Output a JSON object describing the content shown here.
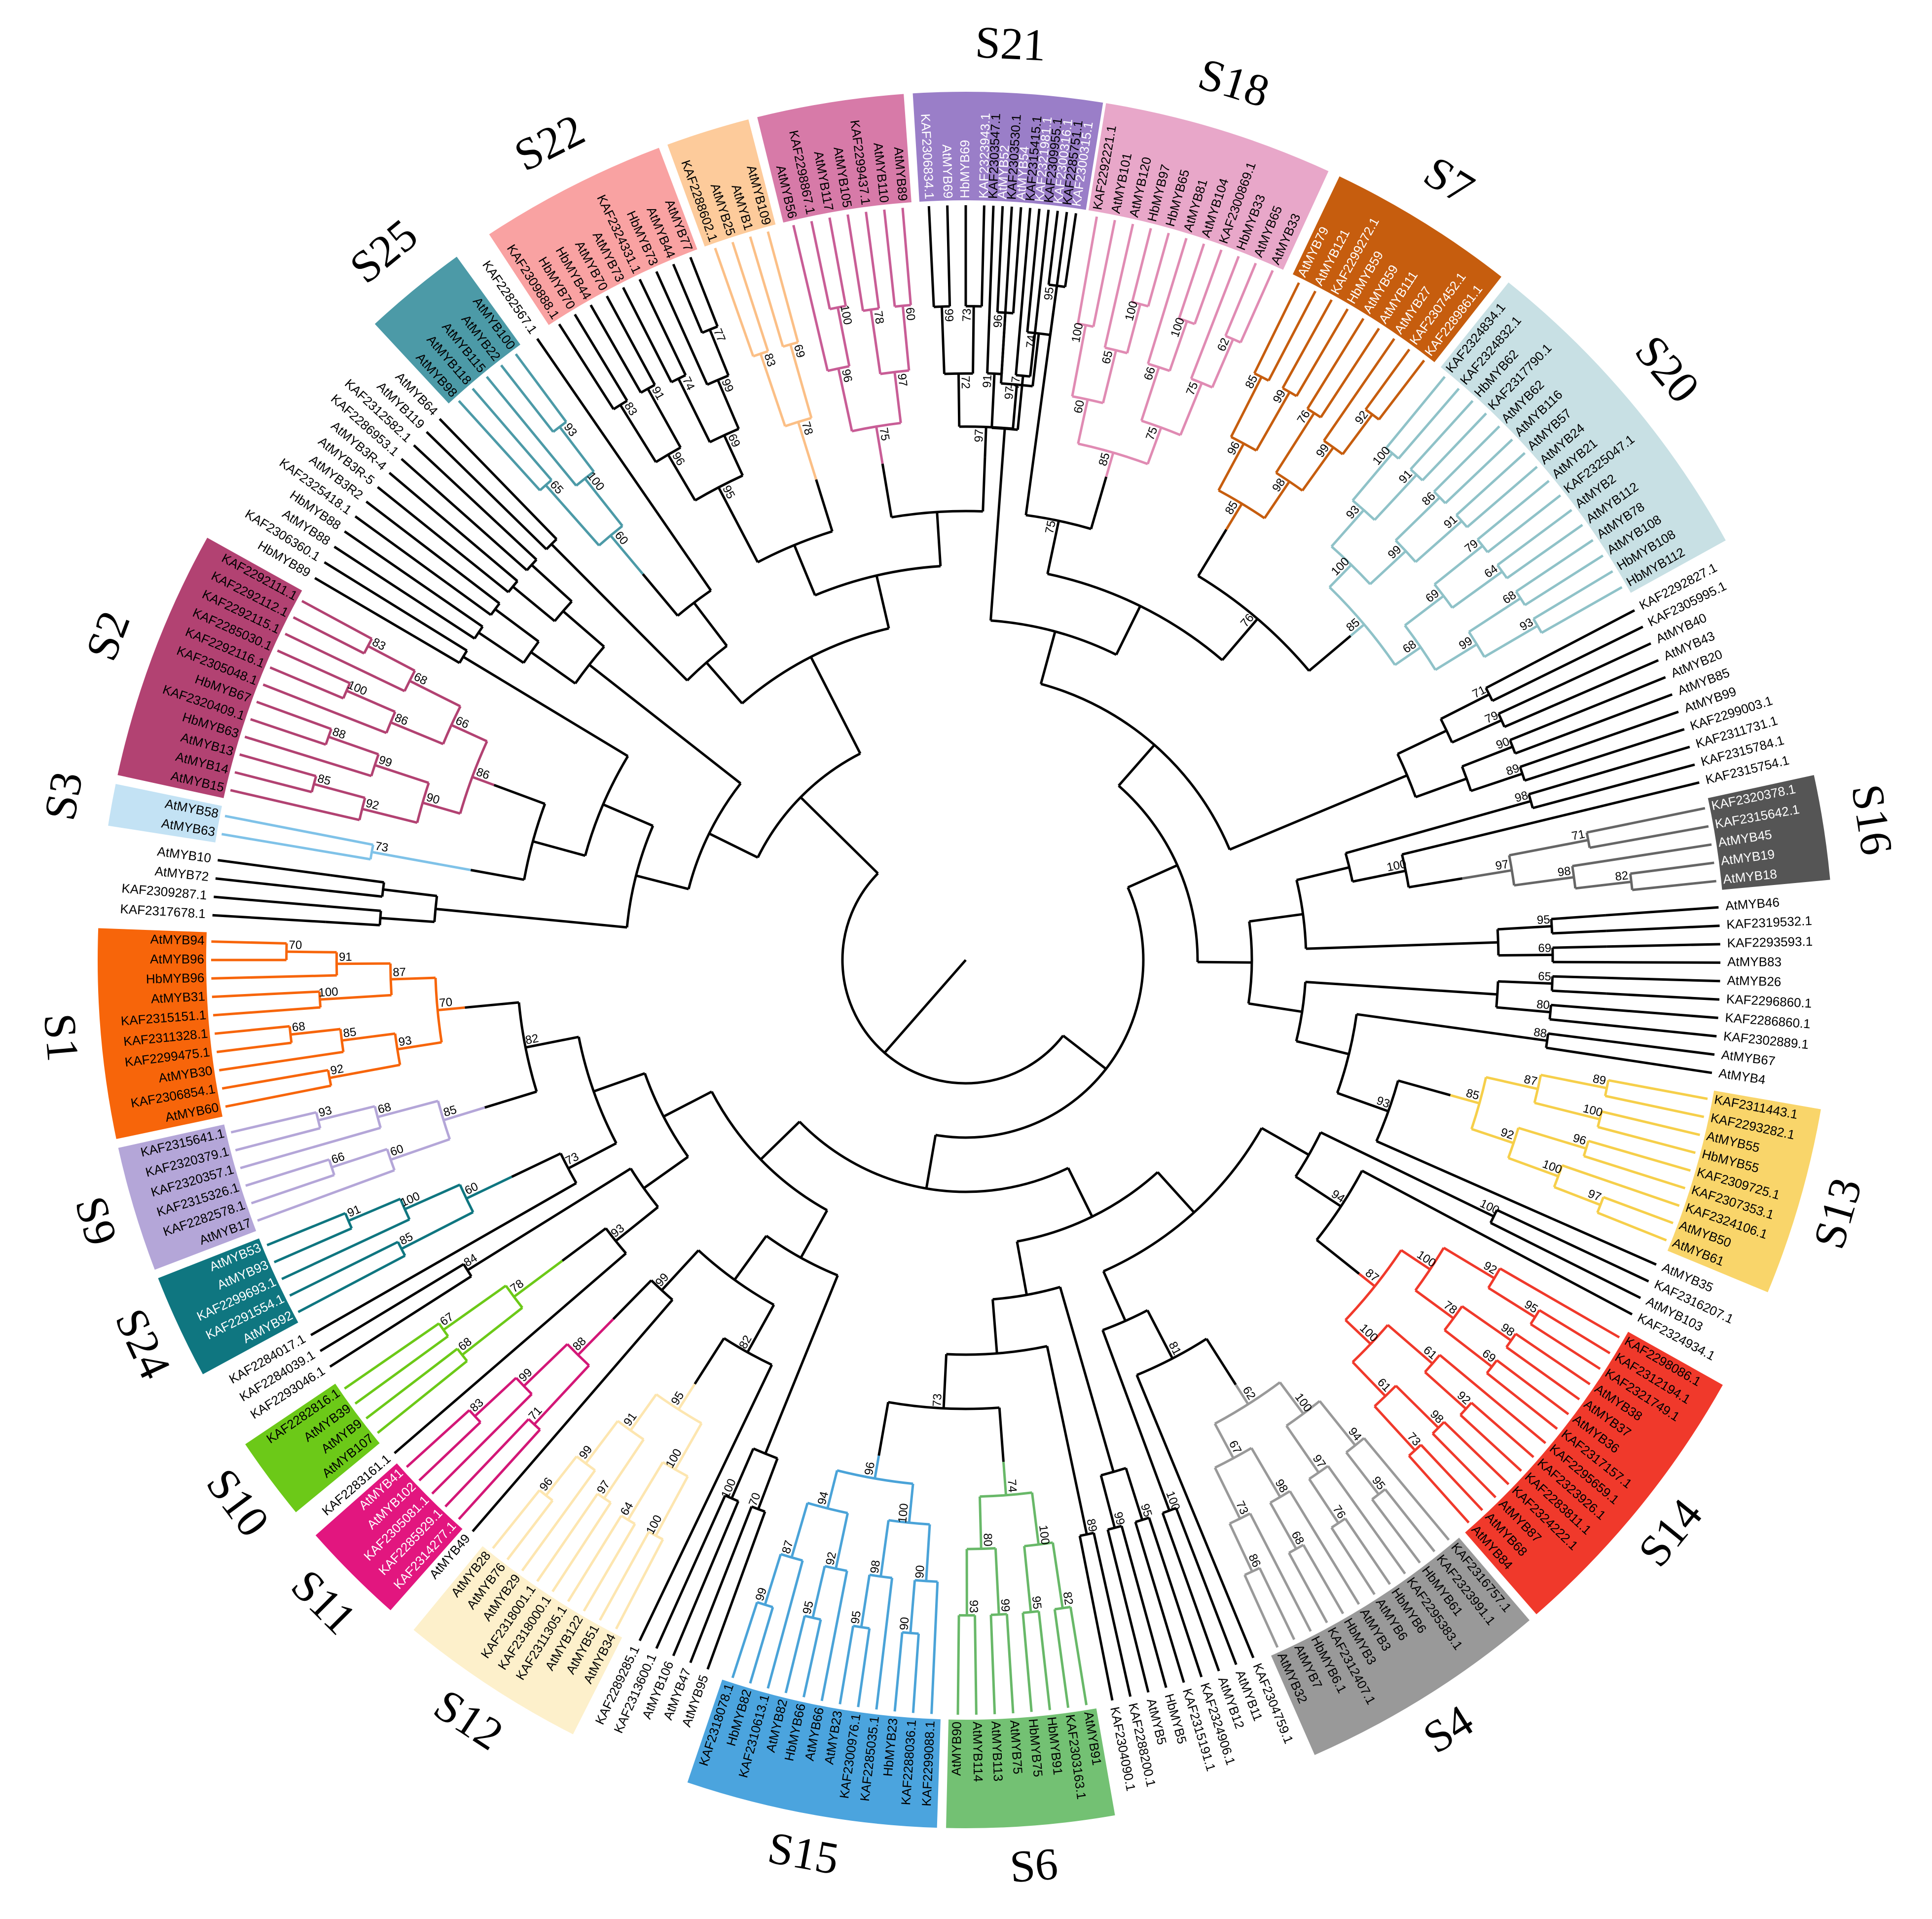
{
  "colors": {
    "S21": "#9a7ec8",
    "S18": "#e8a7c9",
    "S7": "#c65d0e",
    "S20": "#c8e0e4",
    "S16": "#555555",
    "S13": "#f9d56a",
    "S14": "#f0392b",
    "S4": "#999999",
    "S6": "#73c173",
    "S15": "#4ba4de",
    "S12": "#fdf0cb",
    "S11": "#e2167f",
    "S10": "#6cc918",
    "S24": "#0f7680",
    "S9": "#b4a6d8",
    "S1": "#f7650a",
    "S3": "#c3e2f4",
    "S2": "#b24272",
    "S25": "#4c9aa7",
    "S22": "#f9a2a2",
    "S_peach": "#fdcb9b",
    "S_mauve": "#d77aa8"
  },
  "branch_colors": {
    "S18": "#e08bb3",
    "S7": "#c65d0e",
    "S20": "#8fc2c8",
    "S16": "#666666",
    "S13": "#f6cf4a",
    "S14": "#f0392b",
    "S4": "#999999",
    "S6": "#68b868",
    "S15": "#4aa3d8",
    "S12": "#fde6b0",
    "S11": "#d31777",
    "S10": "#6cc918",
    "S24": "#0f7680",
    "S9": "#b4a6d8",
    "S1": "#f7650a",
    "S3": "#7fc2e8",
    "S2": "#b24272",
    "S25": "#4c9aa7",
    "S_peach": "#fbbf86",
    "S_mauve": "#c85d96",
    "S_red": "#f01010",
    "S_pink": "#f7b3b3"
  },
  "subfamilies": [
    {
      "label": "S21",
      "from": "KAF2306834.1",
      "to": "KAF2300315.1"
    },
    {
      "label": "S18",
      "from": "KAF2292221.1",
      "to": "AtMYB33"
    },
    {
      "label": "S7",
      "from": "AtMYB79",
      "to": "KAF2289861.1"
    },
    {
      "label": "S20",
      "from": "KAF2324834.1",
      "to": "HbMYB112"
    },
    {
      "label": "S16",
      "from": "KAF2320378.1",
      "to": "AtMYB18"
    },
    {
      "label": "S13",
      "from": "KAF2311443.1",
      "to": "AtMYB61"
    },
    {
      "label": "S14",
      "from": "KAF2298086.1",
      "to": "AtMYB84"
    },
    {
      "label": "S4",
      "from": "KAF2316757.1",
      "to": "AtMYB32"
    },
    {
      "label": "S6",
      "from": "AtMYB91",
      "to": "AtMYB90"
    },
    {
      "label": "S15",
      "from": "KAF2299088.1",
      "to": "KAF2318078.1"
    },
    {
      "label": "S12",
      "from": "AtMYB34",
      "to": "AtMYB28"
    },
    {
      "label": "S11",
      "from": "KAF2314277.1",
      "to": "AtMYB41"
    },
    {
      "label": "S10",
      "from": "AtMYB107",
      "to": "KAF2282816.1"
    },
    {
      "label": "S24",
      "from": "AtMYB92",
      "to": "AtMYB53"
    },
    {
      "label": "S9",
      "from": "AtMYB17",
      "to": "KAF2315641.1"
    },
    {
      "label": "S1",
      "from": "AtMYB60",
      "to": "AtMYB94"
    },
    {
      "label": "S3",
      "from": "AtMYB63",
      "to": "AtMYB58"
    },
    {
      "label": "S2",
      "from": "AtMYB15",
      "to": "KAF2292111.1"
    },
    {
      "label": "S25",
      "from": "AtMYB98",
      "to": "AtMYB100"
    },
    {
      "label": "S22",
      "from": "KAF2309888.1",
      "to": "AtMYB77"
    }
  ],
  "unlabeled_bands": [
    {
      "color": "S_peach",
      "from": "KAF2288602.1",
      "to": "AtMYB109"
    },
    {
      "color": "S_mauve",
      "from": "AtMYB56",
      "to": "AtMYB89"
    }
  ],
  "leaves": [
    {
      "label": "KAF2303547.1",
      "a": -87.9
    },
    {
      "label": "KAF2303530.1",
      "a": -86.5
    },
    {
      "label": "KAF2315415.1",
      "a": -85.1
    },
    {
      "label": "KAF2309955.1",
      "a": -83.7
    },
    {
      "label": "KAF2285751.1",
      "a": -82.3
    },
    {
      "label": "KAF2292221.1",
      "a": -80.0
    },
    {
      "label": "AtMYB101",
      "a": -78.6
    },
    {
      "label": "AtMYB120",
      "a": -77.2
    },
    {
      "label": "HbMYB97",
      "a": -75.8
    },
    {
      "label": "HbMYB65",
      "a": -74.4
    },
    {
      "label": "AtMYB81",
      "a": -73.0
    },
    {
      "label": "AtMYB104",
      "a": -71.6
    },
    {
      "label": "KAF2300869.1",
      "a": -70.2
    },
    {
      "label": "HbMYB33",
      "a": -68.8
    },
    {
      "label": "AtMYB65",
      "a": -67.4
    },
    {
      "label": "AtMYB33",
      "a": -66.0
    },
    {
      "label": "AtMYB79",
      "a": -63.8
    },
    {
      "label": "AtMYB121",
      "a": -62.4
    },
    {
      "label": "KAF2299272.1",
      "a": -61.0
    },
    {
      "label": "HbMYB59",
      "a": -59.6
    },
    {
      "label": "AtMYB59",
      "a": -58.2
    },
    {
      "label": "AtMYB111",
      "a": -56.8
    },
    {
      "label": "AtMYB27",
      "a": -55.4
    },
    {
      "label": "KAF2307452.1",
      "a": -54.0
    },
    {
      "label": "KAF2289861.1",
      "a": -52.6
    },
    {
      "label": "KAF2324834.1",
      "a": -50.6
    },
    {
      "label": "KAF2324832.1",
      "a": -49.2
    },
    {
      "label": "HbMYB62",
      "a": -47.8
    },
    {
      "label": "KAF2317790.1",
      "a": -46.4
    },
    {
      "label": "AtMYB62",
      "a": -45.0
    },
    {
      "label": "AtMYB116",
      "a": -43.6
    },
    {
      "label": "AtMYB57",
      "a": -42.2
    },
    {
      "label": "AtMYB24",
      "a": -40.8
    },
    {
      "label": "AtMYB21",
      "a": -39.4
    },
    {
      "label": "KAF2325047.1",
      "a": -38.0
    },
    {
      "label": "AtMYB2",
      "a": -36.6
    },
    {
      "label": "AtMYB112",
      "a": -35.2
    },
    {
      "label": "AtMYB78",
      "a": -33.8
    },
    {
      "label": "AtMYB108",
      "a": -32.4
    },
    {
      "label": "HbMYB108",
      "a": -31.0
    },
    {
      "label": "HbMYB112",
      "a": -29.6
    },
    {
      "label": "KAF2292827.1",
      "a": -27.6
    },
    {
      "label": "KAF2305995.1",
      "a": -26.2
    },
    {
      "label": "AtMYB40",
      "a": -24.8
    },
    {
      "label": "AtMYB43",
      "a": -23.4
    },
    {
      "label": "AtMYB20",
      "a": -22.0
    },
    {
      "label": "AtMYB85",
      "a": -20.6
    },
    {
      "label": "AtMYB99",
      "a": -19.2
    },
    {
      "label": "KAF2299003.1",
      "a": -17.8
    },
    {
      "label": "KAF2311731.1",
      "a": -16.4
    },
    {
      "label": "KAF2315784.1",
      "a": -15.0
    },
    {
      "label": "KAF2315754.1",
      "a": -13.6
    },
    {
      "label": "KAF2320378.1",
      "a": -11.6
    },
    {
      "label": "KAF2315642.1",
      "a": -10.2
    },
    {
      "label": "AtMYB45",
      "a": -8.8
    },
    {
      "label": "AtMYB19",
      "a": -7.4
    },
    {
      "label": "AtMYB18",
      "a": -6.0
    },
    {
      "label": "AtMYB46",
      "a": -4.0
    },
    {
      "label": "KAF2319532.1",
      "a": -2.6
    },
    {
      "label": "KAF2293593.1",
      "a": -1.2
    },
    {
      "label": "AtMYB83",
      "a": 0.2
    },
    {
      "label": "AtMYB26",
      "a": 1.6
    },
    {
      "label": "KAF2296860.1",
      "a": 3.0
    },
    {
      "label": "KAF2286860.1",
      "a": 4.4
    },
    {
      "label": "KAF2302889.1",
      "a": 5.8
    },
    {
      "label": "AtMYB67",
      "a": 7.2
    },
    {
      "label": "AtMYB4",
      "a": 8.6
    },
    {
      "label": "KAF2311443.1",
      "a": 10.6
    },
    {
      "label": "KAF2293282.1",
      "a": 12.0
    },
    {
      "label": "AtMYB55",
      "a": 13.4
    },
    {
      "label": "HbMYB55",
      "a": 14.8
    },
    {
      "label": "KAF2309725.1",
      "a": 16.2
    },
    {
      "label": "KAF2307353.1",
      "a": 17.6
    },
    {
      "label": "KAF2324106.1",
      "a": 19.0
    },
    {
      "label": "AtMYB50",
      "a": 20.4
    },
    {
      "label": "AtMYB61",
      "a": 21.8
    },
    {
      "label": "AtMYB35",
      "a": 23.8
    },
    {
      "label": "KAF2316207.1",
      "a": 25.2
    },
    {
      "label": "AtMYB103",
      "a": 26.6
    },
    {
      "label": "KAF2324934.1",
      "a": 28.0
    },
    {
      "label": "KAF2298086.1",
      "a": 30.0
    },
    {
      "label": "KAF2312194.1",
      "a": 31.4
    },
    {
      "label": "KAF2321749.1",
      "a": 32.8
    },
    {
      "label": "AtMYB38",
      "a": 34.2
    },
    {
      "label": "AtMYB37",
      "a": 35.6
    },
    {
      "label": "AtMYB36",
      "a": 37.0
    },
    {
      "label": "KAF2317157.1",
      "a": 38.4
    },
    {
      "label": "KAF2295659.1",
      "a": 39.8
    },
    {
      "label": "KAF2323926.1",
      "a": 41.2
    },
    {
      "label": "KAF2283811.1",
      "a": 42.6
    },
    {
      "label": "KAF2324222.1",
      "a": 44.0
    },
    {
      "label": "AtMYB87",
      "a": 45.4
    },
    {
      "label": "AtMYB68",
      "a": 46.8
    },
    {
      "label": "AtMYB84",
      "a": 48.2
    },
    {
      "label": "KAF2316757.1",
      "a": 50.2
    },
    {
      "label": "KAF2323991.1",
      "a": 51.6
    },
    {
      "label": "HbMYB61",
      "a": 53.0
    },
    {
      "label": "KAF2295383.1",
      "a": 54.4
    },
    {
      "label": "HbMYB6",
      "a": 55.8
    },
    {
      "label": "AtMYB6",
      "a": 57.2
    },
    {
      "label": "AtMYB3",
      "a": 58.6
    },
    {
      "label": "HbMYB3",
      "a": 60.0
    },
    {
      "label": "KAF2312407.1",
      "a": 61.4
    },
    {
      "label": "HbMYB6.1",
      "a": 62.8
    },
    {
      "label": "AtMYB7",
      "a": 64.2
    },
    {
      "label": "AtMYB32",
      "a": 65.6
    },
    {
      "label": "KAF2304759.1",
      "a": 67.6
    },
    {
      "label": "AtMYB11",
      "a": 69.0
    },
    {
      "label": "AtMYB12",
      "a": 70.4
    },
    {
      "label": "KAF2324906.1",
      "a": 71.8
    },
    {
      "label": "KAF2315191.1",
      "a": 73.2
    },
    {
      "label": "HbMYB5",
      "a": 74.6
    },
    {
      "label": "AtMYB5",
      "a": 76.0
    },
    {
      "label": "KAF2288200.1",
      "a": 77.4
    },
    {
      "label": "KAF2304090.1",
      "a": 78.8
    },
    {
      "label": "AtMYB91",
      "a": 80.8
    },
    {
      "label": "KAF2303163.1",
      "a": 82.2
    },
    {
      "label": "HbMYB91",
      "a": 83.6
    },
    {
      "label": "HbMYB75",
      "a": 85.0
    },
    {
      "label": "AtMYB75",
      "a": 86.4
    },
    {
      "label": "AtMYB113",
      "a": 87.8
    },
    {
      "label": "AtMYB114",
      "a": 89.2
    },
    {
      "label": "AtMYB90",
      "a": 90.6
    },
    {
      "label": "KAF2299088.1",
      "a": 92.6
    },
    {
      "label": "KAF2288036.1",
      "a": 94.0
    },
    {
      "label": "HbMYB23",
      "a": 95.4
    },
    {
      "label": "KAF2285035.1",
      "a": 96.8
    },
    {
      "label": "KAF2300976.1",
      "a": 98.2
    },
    {
      "label": "AtMYB23",
      "a": 99.6
    },
    {
      "label": "AtMYB66",
      "a": 101.0
    },
    {
      "label": "HbMYB66",
      "a": 102.4
    },
    {
      "label": "AtMYB82",
      "a": 103.8
    },
    {
      "label": "KAF2310613.1",
      "a": 105.2
    },
    {
      "label": "HbMYB82",
      "a": 106.6
    },
    {
      "label": "KAF2318078.1",
      "a": 108.0
    },
    {
      "label": "AtMYB95",
      "a": 110.0
    },
    {
      "label": "AtMYB47",
      "a": 111.4
    },
    {
      "label": "AtMYB106",
      "a": 112.8
    },
    {
      "label": "KAF2313600.1",
      "a": 114.2
    },
    {
      "label": "KAF2289285.1",
      "a": 115.6
    },
    {
      "label": "AtMYB34",
      "a": 117.6
    },
    {
      "label": "AtMYB51",
      "a": 119.0
    },
    {
      "label": "AtMYB122",
      "a": 120.4
    },
    {
      "label": "KAF2311305.1",
      "a": 121.8
    },
    {
      "label": "KAF2318000.1",
      "a": 123.2
    },
    {
      "label": "KAF2318001.1",
      "a": 124.6
    },
    {
      "label": "AtMYB29",
      "a": 126.0
    },
    {
      "label": "AtMYB76",
      "a": 127.4
    },
    {
      "label": "AtMYB28",
      "a": 128.8
    },
    {
      "label": "AtMYB49",
      "a": 130.8
    },
    {
      "label": "KAF2314277.1",
      "a": 132.2
    },
    {
      "label": "KAF2285929.1",
      "a": 133.6
    },
    {
      "label": "KAF2305081.1",
      "a": 135.0
    },
    {
      "label": "AtMYB102",
      "a": 136.4
    },
    {
      "label": "AtMYB41",
      "a": 137.8
    },
    {
      "label": "KAF2283161.1",
      "a": 139.2
    },
    {
      "label": "AtMYB107",
      "a": 141.2
    },
    {
      "label": "AtMYB9",
      "a": 142.6
    },
    {
      "label": "AtMYB39",
      "a": 144.0
    },
    {
      "label": "KAF2282816.1",
      "a": 145.4
    },
    {
      "label": "KAF2293046.1",
      "a": 147.4
    },
    {
      "label": "KAF2284039.1",
      "a": 148.8
    },
    {
      "label": "KAF2284017.1",
      "a": 150.2
    },
    {
      "label": "AtMYB92",
      "a": 152.2
    },
    {
      "label": "KAF2291554.1",
      "a": 153.6
    },
    {
      "label": "KAF2299693.1",
      "a": 155.0
    },
    {
      "label": "AtMYB93",
      "a": 156.4
    },
    {
      "label": "AtMYB53",
      "a": 157.8
    },
    {
      "label": "AtMYB17",
      "a": 159.8
    },
    {
      "label": "KAF2282578.1",
      "a": 161.2
    },
    {
      "label": "KAF2315326.1",
      "a": 162.6
    },
    {
      "label": "KAF2320357.1",
      "a": 164.0
    },
    {
      "label": "KAF2320379.1",
      "a": 165.4
    },
    {
      "label": "KAF2315641.1",
      "a": 166.8
    },
    {
      "label": "AtMYB60",
      "a": 168.8
    },
    {
      "label": "KAF2306854.1",
      "a": 170.2
    },
    {
      "label": "AtMYB30",
      "a": 171.6
    },
    {
      "label": "KAF2299475.1",
      "a": 173.0
    },
    {
      "label": "KAF2311328.1",
      "a": 174.4
    },
    {
      "label": "KAF2315151.1",
      "a": 175.8
    },
    {
      "label": "AtMYB31",
      "a": 177.2
    },
    {
      "label": "HbMYB96",
      "a": 178.6
    },
    {
      "label": "AtMYB96",
      "a": 180.0
    },
    {
      "label": "AtMYB94",
      "a": 181.4
    },
    {
      "label": "KAF2317678.1",
      "a": 183.4
    },
    {
      "label": "KAF2309287.1",
      "a": 184.8
    },
    {
      "label": "AtMYB72",
      "a": 186.2
    },
    {
      "label": "AtMYB10",
      "a": 187.6
    },
    {
      "label": "AtMYB63",
      "a": 189.6
    },
    {
      "label": "AtMYB58",
      "a": 191.0
    },
    {
      "label": "AtMYB15",
      "a": 193.0
    },
    {
      "label": "AtMYB14",
      "a": 194.4
    },
    {
      "label": "AtMYB13",
      "a": 195.8
    },
    {
      "label": "HbMYB63",
      "a": 197.2
    },
    {
      "label": "KAF2320409.1",
      "a": 198.6
    },
    {
      "label": "HbMYB67",
      "a": 200.0
    },
    {
      "label": "KAF2305048.1",
      "a": 201.4
    },
    {
      "label": "KAF2292116.1",
      "a": 202.8
    },
    {
      "label": "KAF2285030.1",
      "a": 204.2
    },
    {
      "label": "KAF2292115.1",
      "a": 205.6
    },
    {
      "label": "KAF2292112.1",
      "a": 207.0
    },
    {
      "label": "KAF2292111.1",
      "a": 208.4
    },
    {
      "label": "HbMYB89",
      "a": 210.4
    },
    {
      "label": "KAF2306360.1",
      "a": 211.8
    },
    {
      "label": "AtMYB88",
      "a": 213.2
    },
    {
      "label": "HbMYB88",
      "a": 214.6
    },
    {
      "label": "KAF2325418.1",
      "a": 216.0
    },
    {
      "label": "AtMYB3R2",
      "a": 217.4
    },
    {
      "label": "AtMYB3R-5",
      "a": 218.8
    },
    {
      "label": "AtMYB3R-4",
      "a": 220.2
    },
    {
      "label": "KAF2286953.1",
      "a": 221.6
    },
    {
      "label": "KAF2312582.1",
      "a": 223.0
    },
    {
      "label": "AtMYB119",
      "a": 224.4
    },
    {
      "label": "AtMYB64",
      "a": 225.8
    },
    {
      "label": "AtMYB98",
      "a": 227.8
    },
    {
      "label": "AtMYB118",
      "a": 229.2
    },
    {
      "label": "AtMYB115",
      "a": 230.6
    },
    {
      "label": "AtMYB22",
      "a": 232.0
    },
    {
      "label": "AtMYB100",
      "a": 233.4
    },
    {
      "label": "KAF2282567.1",
      "a": 235.4
    },
    {
      "label": "KAF2309888.1",
      "a": 237.4
    },
    {
      "label": "HbMYB70",
      "a": 238.8
    },
    {
      "label": "HbMYB44",
      "a": 240.2
    },
    {
      "label": "AtMYB70",
      "a": 241.6
    },
    {
      "label": "AtMYB73",
      "a": 243.0
    },
    {
      "label": "KAF2324331.1",
      "a": 244.4
    },
    {
      "label": "HbMYB73",
      "a": 245.8
    },
    {
      "label": "AtMYB44",
      "a": 247.2
    },
    {
      "label": "AtMYB77",
      "a": 248.6
    },
    {
      "label": "KAF2288602.1",
      "a": 250.6
    },
    {
      "label": "AtMYB25",
      "a": 252.0
    },
    {
      "label": "AtMYB1",
      "a": 253.4
    },
    {
      "label": "AtMYB109",
      "a": 254.8
    },
    {
      "label": "AtMYB56",
      "a": 256.8
    },
    {
      "label": "KAF2298867.1",
      "a": 258.2
    },
    {
      "label": "AtMYB117",
      "a": 259.6
    },
    {
      "label": "AtMYB105",
      "a": 261.0
    },
    {
      "label": "KAF2299437.1",
      "a": 262.4
    },
    {
      "label": "AtMYB110",
      "a": 263.8
    },
    {
      "label": "AtMYB89",
      "a": 265.2
    },
    {
      "label": "KAF2306834.1",
      "a": 267.2
    },
    {
      "label": "AtMYB69",
      "a": 268.6
    },
    {
      "label": "HbMYB69",
      "a": 270.0
    },
    {
      "label": "KAF2323943.1",
      "a": 271.4
    },
    {
      "label": "AtMYB52",
      "a": 272.8
    },
    {
      "label": "AtMYB54",
      "a": 274.2
    },
    {
      "label": "KAF2321981.1",
      "a": 275.6
    },
    {
      "label": "KAF2300316.1",
      "a": 277.0
    },
    {
      "label": "KAF2300315.1",
      "a": 278.4
    }
  ],
  "white_label_groups": [
    "S21",
    "S7",
    "S16",
    "S24",
    "S11"
  ],
  "bootstrap_values": [
    "100",
    "100",
    "65",
    "60",
    "100",
    "66",
    "62",
    "75",
    "75",
    "85",
    "85",
    "99",
    "96",
    "76",
    "92",
    "99",
    "98",
    "85",
    "100",
    "91",
    "93",
    "86",
    "91",
    "99",
    "100",
    "79",
    "64",
    "69",
    "68",
    "93",
    "99",
    "68",
    "85",
    "71",
    "82",
    "98",
    "97",
    "89",
    "100",
    "87",
    "96",
    "97",
    "100",
    "92",
    "85",
    "95",
    "92",
    "98",
    "69",
    "78",
    "100",
    "92",
    "61",
    "98",
    "73",
    "61",
    "100",
    "87",
    "95",
    "94",
    "76",
    "97",
    "100",
    "68",
    "98",
    "86",
    "73",
    "67",
    "62",
    "82",
    "95",
    "100",
    "99",
    "93",
    "80",
    "74",
    "90",
    "90",
    "95",
    "98",
    "100",
    "95",
    "92",
    "99",
    "87",
    "94",
    "96",
    "100",
    "64",
    "100",
    "97",
    "96",
    "99",
    "91",
    "95",
    "71",
    "83",
    "99",
    "88",
    "68",
    "67",
    "78",
    "85",
    "91",
    "100",
    "60",
    "66",
    "60",
    "93",
    "68",
    "85",
    "92",
    "68",
    "85",
    "93",
    "100",
    "70",
    "91",
    "87",
    "70",
    "73",
    "85",
    "92",
    "88",
    "99",
    "90",
    "100",
    "86",
    "83",
    "68",
    "66",
    "86",
    "65",
    "93",
    "100",
    "60",
    "83",
    "91",
    "96",
    "74",
    "77",
    "99",
    "69",
    "95",
    "83",
    "69",
    "78",
    "100",
    "96",
    "78",
    "60",
    "97",
    "75",
    "99",
    "73",
    "72",
    "96",
    "95",
    "74",
    "97",
    "97",
    "91",
    "77",
    "75",
    "76",
    "71",
    "79",
    "90",
    "89",
    "98",
    "100",
    "95",
    "69",
    "65",
    "80",
    "88",
    "93",
    "100",
    "94",
    "81",
    "100",
    "95",
    "99",
    "89",
    "73",
    "70",
    "100",
    "82",
    "99",
    "93",
    "84",
    "73",
    "82"
  ]
}
